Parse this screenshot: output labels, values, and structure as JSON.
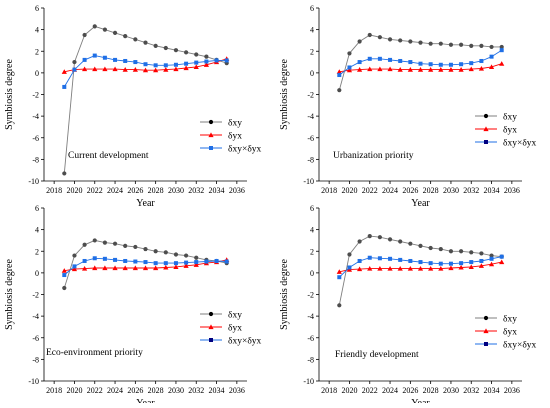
{
  "chart_data": [
    {
      "type": "line",
      "title": "Current development",
      "xlabel": "Year",
      "ylabel": "Symbiosis degree",
      "xlim": [
        2017,
        2037
      ],
      "ylim": [
        -10,
        6
      ],
      "xticks": [
        2018,
        2020,
        2022,
        2024,
        2026,
        2028,
        2030,
        2032,
        2034,
        2036
      ],
      "yticks": [
        -10,
        -8,
        -6,
        -4,
        -2,
        0,
        2,
        4,
        6
      ],
      "legend_position": "right, lower-middle",
      "x": [
        2019,
        2020,
        2021,
        2022,
        2023,
        2024,
        2025,
        2026,
        2027,
        2028,
        2029,
        2030,
        2031,
        2032,
        2033,
        2034,
        2035
      ],
      "series": [
        {
          "name": "δxy",
          "color": "#7f7f7f",
          "marker": "circle",
          "values": [
            -9.3,
            1.0,
            3.5,
            4.3,
            4.0,
            3.7,
            3.4,
            3.1,
            2.8,
            2.5,
            2.3,
            2.1,
            1.9,
            1.7,
            1.5,
            1.2,
            0.9
          ]
        },
        {
          "name": "δyx",
          "color": "#ff0000",
          "marker": "triangle",
          "values": [
            0.1,
            0.3,
            0.35,
            0.35,
            0.35,
            0.35,
            0.3,
            0.3,
            0.25,
            0.25,
            0.3,
            0.35,
            0.45,
            0.55,
            0.75,
            1.0,
            1.3
          ]
        },
        {
          "name": "δxy×δyx",
          "color": "#1f6fe6",
          "marker": "square",
          "values": [
            -1.3,
            0.3,
            1.2,
            1.6,
            1.4,
            1.2,
            1.1,
            1.0,
            0.8,
            0.7,
            0.7,
            0.75,
            0.85,
            0.95,
            1.05,
            1.15,
            1.15
          ]
        }
      ]
    },
    {
      "type": "line",
      "title": "Urbanization priority",
      "xlabel": "Year",
      "ylabel": "Symbiosis degree",
      "xlim": [
        2017,
        2037
      ],
      "ylim": [
        -10,
        6
      ],
      "xticks": [
        2018,
        2020,
        2022,
        2024,
        2026,
        2028,
        2030,
        2032,
        2034,
        2036
      ],
      "yticks": [
        -10,
        -8,
        -6,
        -4,
        -2,
        0,
        2,
        4,
        6
      ],
      "legend_position": "right, lower-middle",
      "x": [
        2019,
        2020,
        2021,
        2022,
        2023,
        2024,
        2025,
        2026,
        2027,
        2028,
        2029,
        2030,
        2031,
        2032,
        2033,
        2034,
        2035
      ],
      "series": [
        {
          "name": "δxy",
          "color": "#7f7f7f",
          "marker": "circle",
          "values": [
            -1.6,
            1.8,
            2.9,
            3.5,
            3.3,
            3.1,
            3.0,
            2.9,
            2.8,
            2.7,
            2.7,
            2.6,
            2.6,
            2.5,
            2.5,
            2.4,
            2.4
          ]
        },
        {
          "name": "δyx",
          "color": "#ff0000",
          "marker": "triangle",
          "values": [
            0.1,
            0.25,
            0.3,
            0.35,
            0.35,
            0.35,
            0.3,
            0.3,
            0.3,
            0.3,
            0.3,
            0.3,
            0.3,
            0.35,
            0.4,
            0.55,
            0.85
          ]
        },
        {
          "name": "δxy×δyx",
          "color": "#1f6fe6",
          "marker": "square",
          "values": [
            -0.2,
            0.5,
            1.0,
            1.3,
            1.3,
            1.2,
            1.1,
            1.0,
            0.85,
            0.8,
            0.75,
            0.75,
            0.8,
            0.9,
            1.1,
            1.5,
            2.1
          ]
        }
      ]
    },
    {
      "type": "line",
      "title": "Eco-environment priority",
      "xlabel": "Year",
      "ylabel": "Symbiosis degree",
      "xlim": [
        2017,
        2037
      ],
      "ylim": [
        -10,
        6
      ],
      "xticks": [
        2018,
        2020,
        2022,
        2024,
        2026,
        2028,
        2030,
        2032,
        2034,
        2036
      ],
      "yticks": [
        -10,
        -8,
        -6,
        -4,
        -2,
        0,
        2,
        4,
        6
      ],
      "legend_position": "right, lower-middle",
      "x": [
        2019,
        2020,
        2021,
        2022,
        2023,
        2024,
        2025,
        2026,
        2027,
        2028,
        2029,
        2030,
        2031,
        2032,
        2033,
        2034,
        2035
      ],
      "series": [
        {
          "name": "δxy",
          "color": "#7f7f7f",
          "marker": "circle",
          "values": [
            -1.4,
            1.6,
            2.6,
            3.0,
            2.8,
            2.7,
            2.5,
            2.4,
            2.2,
            2.0,
            1.9,
            1.7,
            1.6,
            1.4,
            1.2,
            1.1,
            0.9
          ]
        },
        {
          "name": "δyx",
          "color": "#ff0000",
          "marker": "triangle",
          "values": [
            0.2,
            0.35,
            0.4,
            0.45,
            0.45,
            0.45,
            0.45,
            0.45,
            0.45,
            0.45,
            0.5,
            0.55,
            0.65,
            0.75,
            0.9,
            1.0,
            1.2
          ]
        },
        {
          "name": "δxy×δyx",
          "color": "#1f6fe6",
          "marker": "square",
          "values": [
            -0.2,
            0.6,
            1.1,
            1.35,
            1.3,
            1.2,
            1.1,
            1.05,
            1.0,
            0.9,
            0.9,
            0.9,
            0.95,
            1.0,
            1.05,
            1.1,
            1.05
          ]
        }
      ]
    },
    {
      "type": "line",
      "title": "Friendly development",
      "xlabel": "Year",
      "ylabel": "Symbiosis degree",
      "xlim": [
        2017,
        2037
      ],
      "ylim": [
        -10,
        6
      ],
      "xticks": [
        2018,
        2020,
        2022,
        2024,
        2026,
        2028,
        2030,
        2032,
        2034,
        2036
      ],
      "yticks": [
        -10,
        -8,
        -6,
        -4,
        -2,
        0,
        2,
        4,
        6
      ],
      "legend_position": "right, lower-middle",
      "x": [
        2019,
        2020,
        2021,
        2022,
        2023,
        2024,
        2025,
        2026,
        2027,
        2028,
        2029,
        2030,
        2031,
        2032,
        2033,
        2034,
        2035
      ],
      "series": [
        {
          "name": "δxy",
          "color": "#7f7f7f",
          "marker": "circle",
          "values": [
            -3.0,
            1.7,
            2.9,
            3.4,
            3.3,
            3.1,
            2.9,
            2.7,
            2.5,
            2.3,
            2.2,
            2.0,
            2.0,
            1.9,
            1.8,
            1.6,
            1.5
          ]
        },
        {
          "name": "δyx",
          "color": "#ff0000",
          "marker": "triangle",
          "values": [
            0.1,
            0.3,
            0.35,
            0.4,
            0.4,
            0.4,
            0.4,
            0.4,
            0.4,
            0.4,
            0.4,
            0.45,
            0.5,
            0.55,
            0.65,
            0.8,
            1.0
          ]
        },
        {
          "name": "δxy×δyx",
          "color": "#1f6fe6",
          "marker": "square",
          "values": [
            -0.4,
            0.5,
            1.1,
            1.4,
            1.35,
            1.3,
            1.2,
            1.1,
            1.0,
            0.9,
            0.85,
            0.85,
            0.9,
            1.0,
            1.1,
            1.3,
            1.5
          ]
        }
      ]
    }
  ]
}
